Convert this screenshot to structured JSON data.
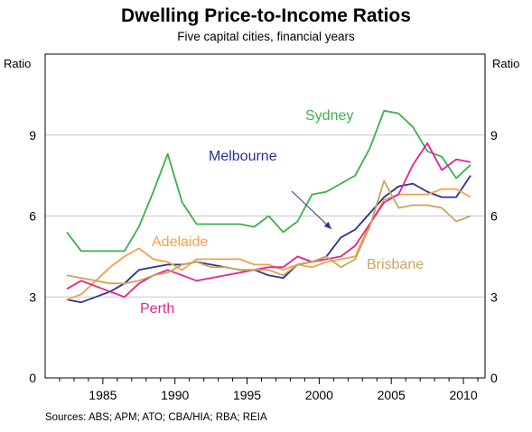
{
  "title": "Dwelling Price-to-Income Ratios",
  "subtitle": "Five capital cities, financial years",
  "source": "Sources: ABS; APM; ATO; CBA/HIA; RBA; REIA",
  "chart_data": {
    "type": "line",
    "title": "Dwelling Price-to-Income Ratios",
    "subtitle": "Five capital cities, financial years",
    "ylabel_left": "Ratio",
    "ylabel_right": "Ratio",
    "xlim": [
      1981,
      2011.5
    ],
    "ylim": [
      0,
      12
    ],
    "x_ticks": [
      1985,
      1990,
      1995,
      2000,
      2005,
      2010
    ],
    "y_ticks": [
      0,
      3,
      6,
      9
    ],
    "grid": "horizontal",
    "series": [
      {
        "name": "Sydney",
        "color": "#3cb04a",
        "x": [
          1982.5,
          1983.5,
          1984.5,
          1985.5,
          1986.5,
          1987.5,
          1988.5,
          1989.5,
          1990.5,
          1991.5,
          1992.5,
          1993.5,
          1994.5,
          1995.5,
          1996.5,
          1997.5,
          1998.5,
          1999.5,
          2000.5,
          2001.5,
          2002.5,
          2003.5,
          2004.5,
          2005.5,
          2006.5,
          2007.5,
          2008.5,
          2009.5,
          2010.5
        ],
        "values": [
          5.4,
          4.7,
          4.7,
          4.7,
          4.7,
          5.6,
          6.9,
          8.3,
          6.5,
          5.7,
          5.7,
          5.7,
          5.7,
          5.6,
          6.0,
          5.4,
          5.8,
          6.8,
          6.9,
          7.2,
          7.5,
          8.5,
          9.9,
          9.8,
          9.3,
          8.4,
          8.2,
          7.4,
          7.9
        ]
      },
      {
        "name": "Melbourne",
        "color": "#2e3192",
        "x": [
          1982.5,
          1983.5,
          1984.5,
          1985.5,
          1986.5,
          1987.5,
          1988.5,
          1989.5,
          1990.5,
          1991.5,
          1992.5,
          1993.5,
          1994.5,
          1995.5,
          1996.5,
          1997.5,
          1998.5,
          1999.5,
          2000.5,
          2001.5,
          2002.5,
          2003.5,
          2004.5,
          2005.5,
          2006.5,
          2007.5,
          2008.5,
          2009.5,
          2010.5
        ],
        "values": [
          2.9,
          2.8,
          3.0,
          3.2,
          3.5,
          4.0,
          4.1,
          4.2,
          4.2,
          4.3,
          4.2,
          4.1,
          4.0,
          4.0,
          3.8,
          3.7,
          4.2,
          4.3,
          4.5,
          5.2,
          5.5,
          6.1,
          6.7,
          7.1,
          7.2,
          6.9,
          6.7,
          6.7,
          7.5
        ]
      },
      {
        "name": "Adelaide",
        "color": "#f5a04a",
        "x": [
          1982.5,
          1983.5,
          1984.5,
          1985.5,
          1986.5,
          1987.5,
          1988.5,
          1989.5,
          1990.5,
          1991.5,
          1992.5,
          1993.5,
          1994.5,
          1995.5,
          1996.5,
          1997.5,
          1998.5,
          1999.5,
          2000.5,
          2001.5,
          2002.5,
          2003.5,
          2004.5,
          2005.5,
          2006.5,
          2007.5,
          2008.5,
          2009.5,
          2010.5
        ],
        "values": [
          2.9,
          3.1,
          3.6,
          4.1,
          4.5,
          4.8,
          4.4,
          4.3,
          4.0,
          4.4,
          4.4,
          4.4,
          4.4,
          4.2,
          4.2,
          4.0,
          4.2,
          4.1,
          4.3,
          4.4,
          4.5,
          5.7,
          6.6,
          6.8,
          6.8,
          6.8,
          7.0,
          7.0,
          6.7
        ]
      },
      {
        "name": "Perth",
        "color": "#e6228f",
        "x": [
          1982.5,
          1983.5,
          1984.5,
          1985.5,
          1986.5,
          1987.5,
          1988.5,
          1989.5,
          1990.5,
          1991.5,
          1992.5,
          1993.5,
          1994.5,
          1995.5,
          1996.5,
          1997.5,
          1998.5,
          1999.5,
          2000.5,
          2001.5,
          2002.5,
          2003.5,
          2004.5,
          2005.5,
          2006.5,
          2007.5,
          2008.5,
          2009.5,
          2010.5
        ],
        "values": [
          3.3,
          3.6,
          3.4,
          3.2,
          3.0,
          3.5,
          3.8,
          4.0,
          3.8,
          3.6,
          3.7,
          3.8,
          3.9,
          4.0,
          4.1,
          4.1,
          4.5,
          4.3,
          4.4,
          4.5,
          4.9,
          5.7,
          6.5,
          6.8,
          7.9,
          8.7,
          7.7,
          8.1,
          8.0
        ]
      },
      {
        "name": "Brisbane",
        "color": "#c9a55a",
        "x": [
          1982.5,
          1983.5,
          1984.5,
          1985.5,
          1986.5,
          1987.5,
          1988.5,
          1989.5,
          1990.5,
          1991.5,
          1992.5,
          1993.5,
          1994.5,
          1995.5,
          1996.5,
          1997.5,
          1998.5,
          1999.5,
          2000.5,
          2001.5,
          2002.5,
          2003.5,
          2004.5,
          2005.5,
          2006.5,
          2007.5,
          2008.5,
          2009.5,
          2010.5
        ],
        "values": [
          3.8,
          3.7,
          3.6,
          3.5,
          3.5,
          3.6,
          3.8,
          3.9,
          4.2,
          4.3,
          4.1,
          4.1,
          4.0,
          4.0,
          4.0,
          3.8,
          4.2,
          4.3,
          4.5,
          4.1,
          4.4,
          5.6,
          7.3,
          6.3,
          6.4,
          6.4,
          6.3,
          5.8,
          6.0
        ]
      }
    ],
    "annotations": [
      {
        "text": "Sydney",
        "series": "Sydney"
      },
      {
        "text": "Melbourne",
        "series": "Melbourne"
      },
      {
        "text": "Adelaide",
        "series": "Adelaide"
      },
      {
        "text": "Perth",
        "series": "Perth"
      },
      {
        "text": "Brisbane",
        "series": "Brisbane"
      }
    ]
  }
}
